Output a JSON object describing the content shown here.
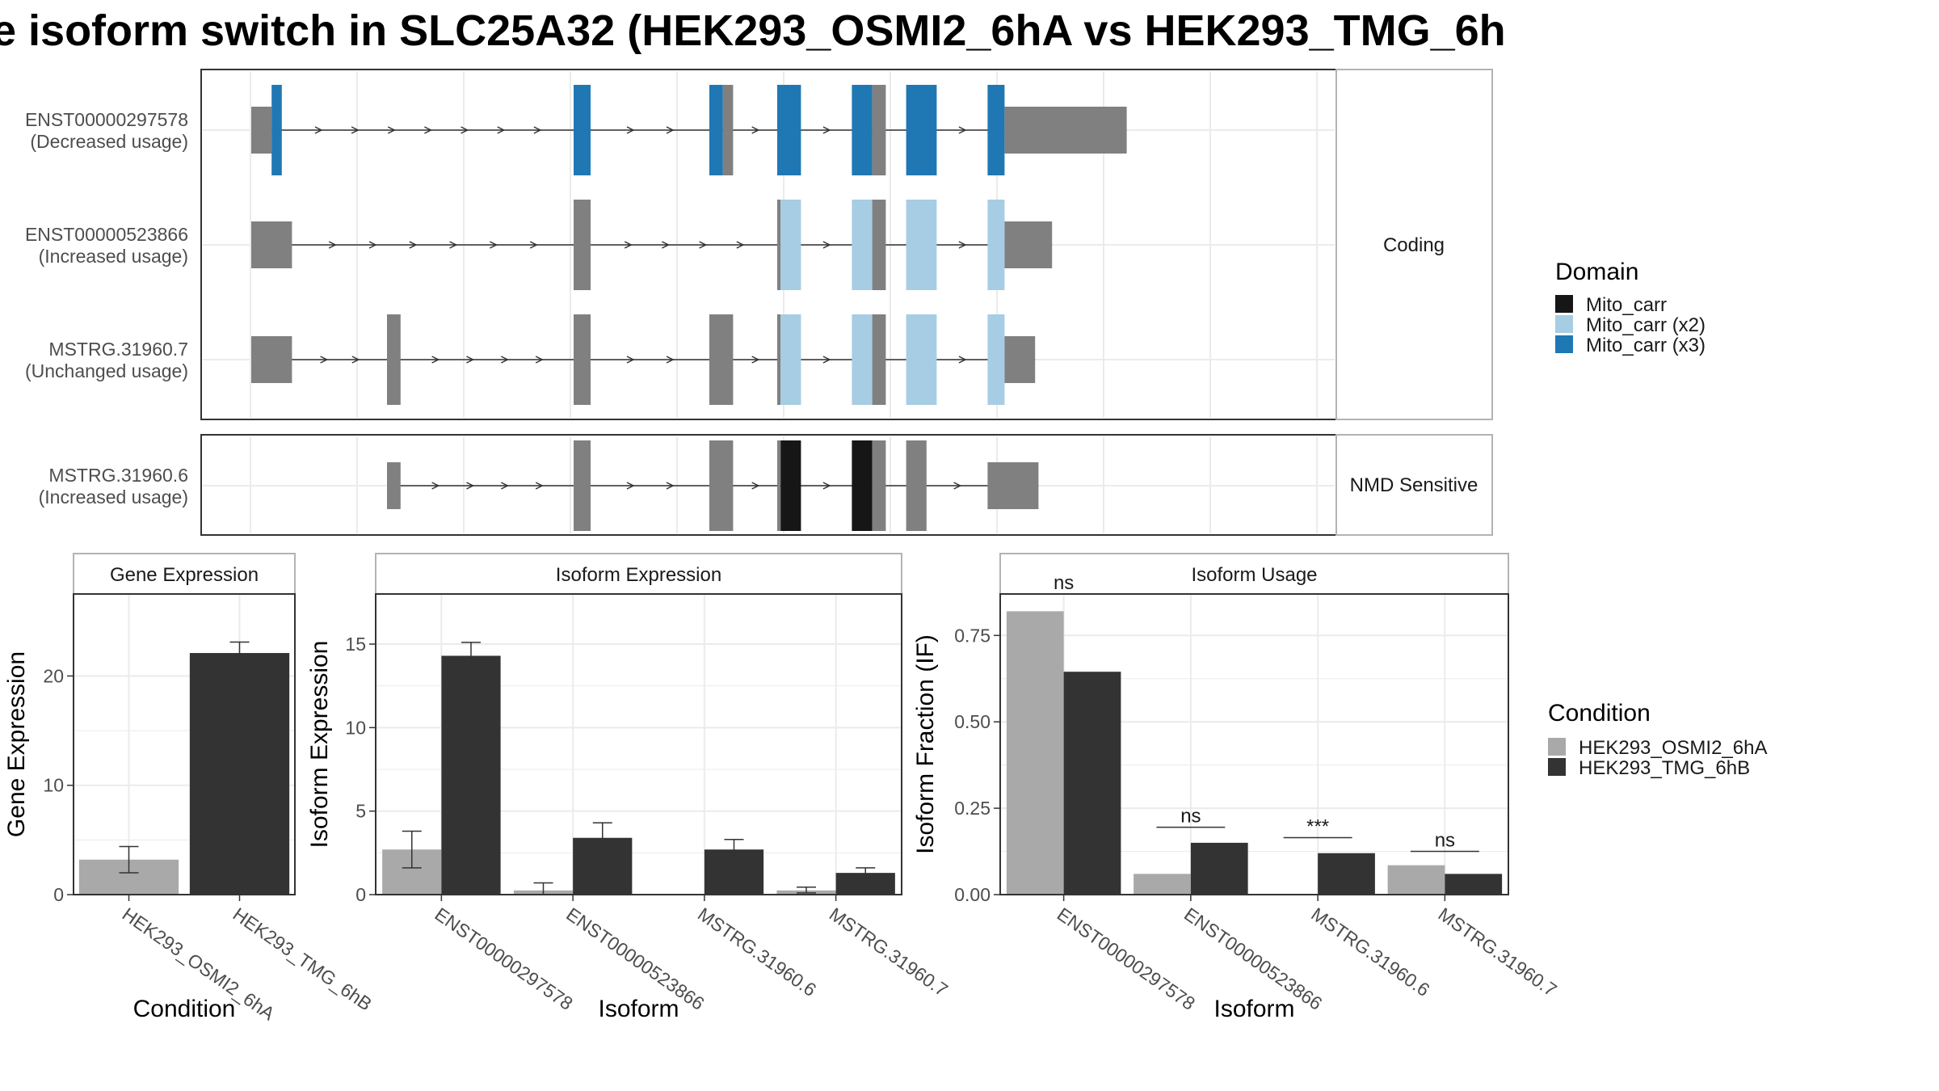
{
  "title": "e isoform switch in SLC25A32 (HEK293_OSMI2_6hA vs HEK293_TMG_6h",
  "colors": {
    "intron": "#333333",
    "exon_grey": "#808080",
    "mito_carr": "#161616",
    "mito_carr_x2": "#a6cde3",
    "mito_carr_x3": "#1f78b4",
    "cond_a": "#a9a9a9",
    "cond_b": "#333333",
    "panel_border": "#333333",
    "strip_border": "#b3b3b3",
    "grid": "#ebebeb"
  },
  "structure": {
    "coding_label": "Coding",
    "nmd_label": "NMD Sensitive",
    "transcripts": [
      {
        "id": "ENST00000297578",
        "usage": "(Decreased usage)",
        "group": "coding",
        "exons": [
          [
            0,
            6,
            "utr"
          ],
          [
            6,
            9,
            "d3"
          ],
          [
            9,
            0,
            "gap"
          ],
          [
            95,
            100,
            "d3"
          ],
          [
            135,
            139,
            "d3"
          ],
          [
            139,
            142,
            "mix"
          ],
          [
            155,
            162,
            "d3"
          ],
          [
            177,
            183,
            "d3"
          ],
          [
            183,
            187,
            "mix"
          ],
          [
            193,
            202,
            "d3"
          ],
          [
            217,
            222,
            "d3"
          ],
          [
            222,
            258,
            "utr"
          ]
        ]
      },
      {
        "id": "ENST00000523866",
        "usage": "(Increased usage)",
        "group": "coding",
        "exons": [
          [
            0,
            12,
            "utr"
          ],
          [
            95,
            100,
            "utr"
          ],
          [
            155,
            156,
            "utr"
          ],
          [
            156,
            162,
            "d2"
          ],
          [
            177,
            183,
            "d2"
          ],
          [
            183,
            187,
            "mix"
          ],
          [
            193,
            202,
            "d2"
          ],
          [
            217,
            222,
            "d2"
          ],
          [
            222,
            236,
            "utr"
          ]
        ]
      },
      {
        "id": "MSTRG.31960.7",
        "usage": "(Unchanged usage)",
        "group": "coding",
        "exons": [
          [
            0,
            12,
            "utr"
          ],
          [
            40,
            44,
            "utr"
          ],
          [
            95,
            100,
            "utr"
          ],
          [
            135,
            142,
            "utr"
          ],
          [
            155,
            156,
            "utr"
          ],
          [
            156,
            162,
            "d2"
          ],
          [
            177,
            183,
            "d2"
          ],
          [
            183,
            187,
            "mix"
          ],
          [
            193,
            202,
            "d2"
          ],
          [
            217,
            222,
            "d2"
          ],
          [
            222,
            231,
            "utr"
          ]
        ]
      },
      {
        "id": "MSTRG.31960.6",
        "usage": "(Increased usage)",
        "group": "nmd",
        "exons": [
          [
            40,
            44,
            "utr"
          ],
          [
            95,
            100,
            "utr"
          ],
          [
            135,
            142,
            "utr"
          ],
          [
            155,
            156,
            "utr"
          ],
          [
            156,
            162,
            "d1"
          ],
          [
            177,
            183,
            "d1"
          ],
          [
            183,
            187,
            "utr"
          ],
          [
            193,
            199,
            "utr"
          ],
          [
            217,
            232,
            "utr"
          ]
        ]
      }
    ]
  },
  "legend_domain": {
    "title": "Domain",
    "items": [
      {
        "label": "Mito_carr",
        "color": "#161616"
      },
      {
        "label": "Mito_carr (x2)",
        "color": "#a6cde3"
      },
      {
        "label": "Mito_carr (x3)",
        "color": "#1f78b4"
      }
    ]
  },
  "legend_condition": {
    "title": "Condition",
    "items": [
      {
        "label": "HEK293_OSMI2_6hA",
        "color": "#a9a9a9"
      },
      {
        "label": "HEK293_TMG_6hB",
        "color": "#333333"
      }
    ]
  },
  "chart_data": [
    {
      "type": "bar",
      "title": "Gene Expression",
      "xlabel": "Condition",
      "ylabel": "Gene Expression",
      "ylim": [
        0,
        27.5
      ],
      "yticks": [
        0,
        10,
        20
      ],
      "categories": [
        "HEK293_OSMI2_6hA",
        "HEK293_TMG_6hB"
      ],
      "values": [
        3.2,
        22.1
      ],
      "error": [
        [
          2.0,
          4.4
        ],
        [
          21.1,
          23.1
        ]
      ]
    },
    {
      "type": "bar",
      "title": "Isoform Expression",
      "xlabel": "Isoform",
      "ylabel": "Isoform Expression",
      "ylim": [
        0,
        18
      ],
      "yticks": [
        0,
        5,
        10,
        15
      ],
      "categories": [
        "ENST00000297578",
        "ENST00000523866",
        "MSTRG.31960.6",
        "MSTRG.31960.7"
      ],
      "series": [
        {
          "name": "HEK293_OSMI2_6hA",
          "values": [
            2.7,
            0.25,
            0.0,
            0.25
          ],
          "error": [
            [
              1.6,
              3.8
            ],
            [
              0.0,
              0.7
            ],
            [
              0.0,
              0.0
            ],
            [
              0.1,
              0.45
            ]
          ]
        },
        {
          "name": "HEK293_TMG_6hB",
          "values": [
            14.3,
            3.4,
            2.7,
            1.3
          ],
          "error": [
            [
              13.5,
              15.1
            ],
            [
              2.5,
              4.3
            ],
            [
              2.2,
              3.3
            ],
            [
              1.0,
              1.6
            ]
          ]
        }
      ]
    },
    {
      "type": "bar",
      "title": "Isoform Usage",
      "xlabel": "Isoform",
      "ylabel": "Isoform Fraction (IF)",
      "ylim": [
        0,
        0.87
      ],
      "yticks": [
        0,
        0.25,
        0.5,
        0.75
      ],
      "ytick_labels": [
        "0.00",
        "0.25",
        "0.50",
        "0.75"
      ],
      "categories": [
        "ENST00000297578",
        "ENST00000523866",
        "MSTRG.31960.6",
        "MSTRG.31960.7"
      ],
      "series": [
        {
          "name": "HEK293_OSMI2_6hA",
          "values": [
            0.82,
            0.06,
            0.0,
            0.085
          ]
        },
        {
          "name": "HEK293_TMG_6hB",
          "values": [
            0.645,
            0.15,
            0.12,
            0.06
          ]
        }
      ],
      "significance": [
        "ns",
        "ns",
        "***",
        "ns"
      ],
      "significance_y": [
        0.87,
        0.195,
        0.165,
        0.125
      ]
    }
  ]
}
